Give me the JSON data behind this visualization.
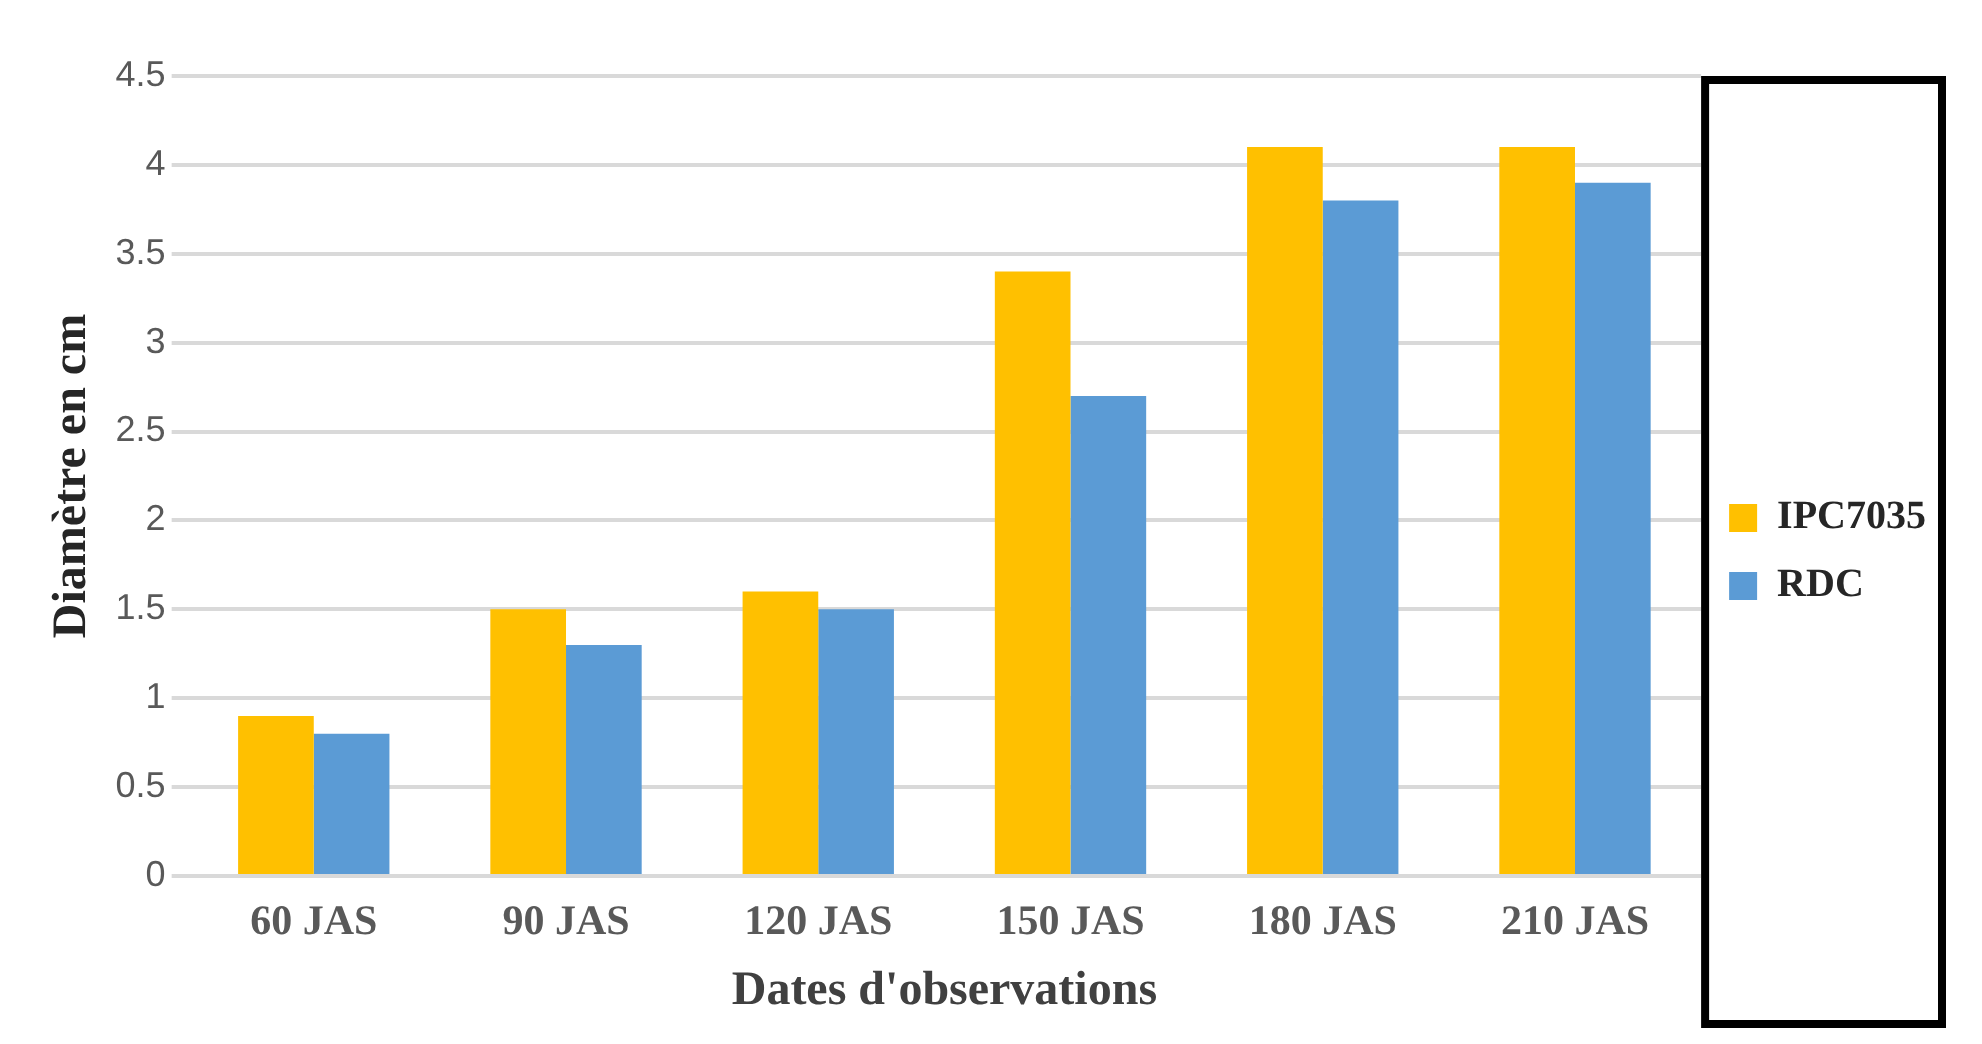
{
  "chart_data": {
    "type": "bar",
    "xlabel": "Dates d'observations",
    "ylabel": "Diamètre en cm",
    "categories": [
      "60 JAS",
      "90 JAS",
      "120 JAS",
      "150 JAS",
      "180 JAS",
      "210 JAS"
    ],
    "series": [
      {
        "name": "IPC7035",
        "color": "#ffc000",
        "values": [
          0.9,
          1.5,
          1.6,
          3.4,
          4.1,
          4.1
        ]
      },
      {
        "name": "RDC",
        "color": "#5b9bd5",
        "values": [
          0.8,
          1.3,
          1.5,
          2.7,
          3.8,
          3.9
        ]
      }
    ],
    "ylim": [
      0,
      4.5
    ],
    "yticks": [
      0,
      0.5,
      1,
      1.5,
      2,
      2.5,
      3,
      3.5,
      4,
      4.5
    ],
    "grid": "y",
    "legend": "right"
  }
}
